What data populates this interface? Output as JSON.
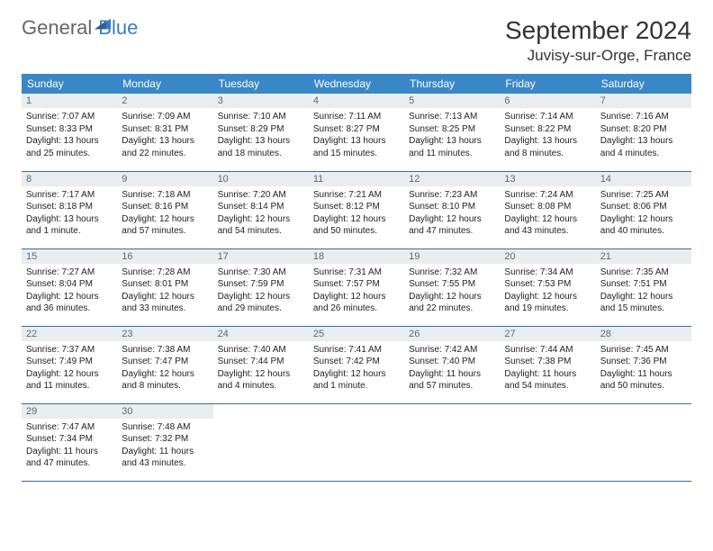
{
  "logo": {
    "text1": "General",
    "text2": "Blue"
  },
  "title": "September 2024",
  "location": "Juvisy-sur-Orge, France",
  "colors": {
    "header_bg": "#3a87c7",
    "header_fg": "#ffffff",
    "daynum_bg": "#e9edef",
    "daynum_fg": "#5a6a75",
    "cell_border": "#3a6a9a",
    "logo_blue": "#3a7cc4"
  },
  "weekdays": [
    "Sunday",
    "Monday",
    "Tuesday",
    "Wednesday",
    "Thursday",
    "Friday",
    "Saturday"
  ],
  "weeks": [
    [
      {
        "num": "1",
        "sunrise": "Sunrise: 7:07 AM",
        "sunset": "Sunset: 8:33 PM",
        "daylight": "Daylight: 13 hours and 25 minutes."
      },
      {
        "num": "2",
        "sunrise": "Sunrise: 7:09 AM",
        "sunset": "Sunset: 8:31 PM",
        "daylight": "Daylight: 13 hours and 22 minutes."
      },
      {
        "num": "3",
        "sunrise": "Sunrise: 7:10 AM",
        "sunset": "Sunset: 8:29 PM",
        "daylight": "Daylight: 13 hours and 18 minutes."
      },
      {
        "num": "4",
        "sunrise": "Sunrise: 7:11 AM",
        "sunset": "Sunset: 8:27 PM",
        "daylight": "Daylight: 13 hours and 15 minutes."
      },
      {
        "num": "5",
        "sunrise": "Sunrise: 7:13 AM",
        "sunset": "Sunset: 8:25 PM",
        "daylight": "Daylight: 13 hours and 11 minutes."
      },
      {
        "num": "6",
        "sunrise": "Sunrise: 7:14 AM",
        "sunset": "Sunset: 8:22 PM",
        "daylight": "Daylight: 13 hours and 8 minutes."
      },
      {
        "num": "7",
        "sunrise": "Sunrise: 7:16 AM",
        "sunset": "Sunset: 8:20 PM",
        "daylight": "Daylight: 13 hours and 4 minutes."
      }
    ],
    [
      {
        "num": "8",
        "sunrise": "Sunrise: 7:17 AM",
        "sunset": "Sunset: 8:18 PM",
        "daylight": "Daylight: 13 hours and 1 minute."
      },
      {
        "num": "9",
        "sunrise": "Sunrise: 7:18 AM",
        "sunset": "Sunset: 8:16 PM",
        "daylight": "Daylight: 12 hours and 57 minutes."
      },
      {
        "num": "10",
        "sunrise": "Sunrise: 7:20 AM",
        "sunset": "Sunset: 8:14 PM",
        "daylight": "Daylight: 12 hours and 54 minutes."
      },
      {
        "num": "11",
        "sunrise": "Sunrise: 7:21 AM",
        "sunset": "Sunset: 8:12 PM",
        "daylight": "Daylight: 12 hours and 50 minutes."
      },
      {
        "num": "12",
        "sunrise": "Sunrise: 7:23 AM",
        "sunset": "Sunset: 8:10 PM",
        "daylight": "Daylight: 12 hours and 47 minutes."
      },
      {
        "num": "13",
        "sunrise": "Sunrise: 7:24 AM",
        "sunset": "Sunset: 8:08 PM",
        "daylight": "Daylight: 12 hours and 43 minutes."
      },
      {
        "num": "14",
        "sunrise": "Sunrise: 7:25 AM",
        "sunset": "Sunset: 8:06 PM",
        "daylight": "Daylight: 12 hours and 40 minutes."
      }
    ],
    [
      {
        "num": "15",
        "sunrise": "Sunrise: 7:27 AM",
        "sunset": "Sunset: 8:04 PM",
        "daylight": "Daylight: 12 hours and 36 minutes."
      },
      {
        "num": "16",
        "sunrise": "Sunrise: 7:28 AM",
        "sunset": "Sunset: 8:01 PM",
        "daylight": "Daylight: 12 hours and 33 minutes."
      },
      {
        "num": "17",
        "sunrise": "Sunrise: 7:30 AM",
        "sunset": "Sunset: 7:59 PM",
        "daylight": "Daylight: 12 hours and 29 minutes."
      },
      {
        "num": "18",
        "sunrise": "Sunrise: 7:31 AM",
        "sunset": "Sunset: 7:57 PM",
        "daylight": "Daylight: 12 hours and 26 minutes."
      },
      {
        "num": "19",
        "sunrise": "Sunrise: 7:32 AM",
        "sunset": "Sunset: 7:55 PM",
        "daylight": "Daylight: 12 hours and 22 minutes."
      },
      {
        "num": "20",
        "sunrise": "Sunrise: 7:34 AM",
        "sunset": "Sunset: 7:53 PM",
        "daylight": "Daylight: 12 hours and 19 minutes."
      },
      {
        "num": "21",
        "sunrise": "Sunrise: 7:35 AM",
        "sunset": "Sunset: 7:51 PM",
        "daylight": "Daylight: 12 hours and 15 minutes."
      }
    ],
    [
      {
        "num": "22",
        "sunrise": "Sunrise: 7:37 AM",
        "sunset": "Sunset: 7:49 PM",
        "daylight": "Daylight: 12 hours and 11 minutes."
      },
      {
        "num": "23",
        "sunrise": "Sunrise: 7:38 AM",
        "sunset": "Sunset: 7:47 PM",
        "daylight": "Daylight: 12 hours and 8 minutes."
      },
      {
        "num": "24",
        "sunrise": "Sunrise: 7:40 AM",
        "sunset": "Sunset: 7:44 PM",
        "daylight": "Daylight: 12 hours and 4 minutes."
      },
      {
        "num": "25",
        "sunrise": "Sunrise: 7:41 AM",
        "sunset": "Sunset: 7:42 PM",
        "daylight": "Daylight: 12 hours and 1 minute."
      },
      {
        "num": "26",
        "sunrise": "Sunrise: 7:42 AM",
        "sunset": "Sunset: 7:40 PM",
        "daylight": "Daylight: 11 hours and 57 minutes."
      },
      {
        "num": "27",
        "sunrise": "Sunrise: 7:44 AM",
        "sunset": "Sunset: 7:38 PM",
        "daylight": "Daylight: 11 hours and 54 minutes."
      },
      {
        "num": "28",
        "sunrise": "Sunrise: 7:45 AM",
        "sunset": "Sunset: 7:36 PM",
        "daylight": "Daylight: 11 hours and 50 minutes."
      }
    ],
    [
      {
        "num": "29",
        "sunrise": "Sunrise: 7:47 AM",
        "sunset": "Sunset: 7:34 PM",
        "daylight": "Daylight: 11 hours and 47 minutes."
      },
      {
        "num": "30",
        "sunrise": "Sunrise: 7:48 AM",
        "sunset": "Sunset: 7:32 PM",
        "daylight": "Daylight: 11 hours and 43 minutes."
      },
      null,
      null,
      null,
      null,
      null
    ]
  ]
}
